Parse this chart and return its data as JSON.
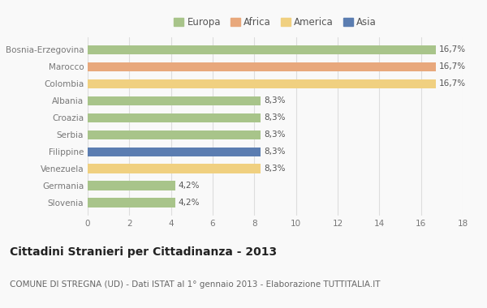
{
  "categories": [
    "Slovenia",
    "Germania",
    "Venezuela",
    "Filippine",
    "Serbia",
    "Croazia",
    "Albania",
    "Colombia",
    "Marocco",
    "Bosnia-Erzegovina"
  ],
  "values": [
    4.2,
    4.2,
    8.3,
    8.3,
    8.3,
    8.3,
    8.3,
    16.7,
    16.7,
    16.7
  ],
  "labels": [
    "4,2%",
    "4,2%",
    "8,3%",
    "8,3%",
    "8,3%",
    "8,3%",
    "8,3%",
    "16,7%",
    "16,7%",
    "16,7%"
  ],
  "colors": [
    "#a8c48a",
    "#a8c48a",
    "#f0d080",
    "#5b7db1",
    "#a8c48a",
    "#a8c48a",
    "#a8c48a",
    "#f0d080",
    "#e8a87c",
    "#a8c48a"
  ],
  "legend_labels": [
    "Europa",
    "Africa",
    "America",
    "Asia"
  ],
  "legend_colors": [
    "#a8c48a",
    "#e8a87c",
    "#f0d080",
    "#5b7db1"
  ],
  "title": "Cittadini Stranieri per Cittadinanza - 2013",
  "subtitle": "COMUNE DI STREGNA (UD) - Dati ISTAT al 1° gennaio 2013 - Elaborazione TUTTITALIA.IT",
  "xlim": [
    0,
    18
  ],
  "xticks": [
    0,
    2,
    4,
    6,
    8,
    10,
    12,
    14,
    16,
    18
  ],
  "bg_color": "#f9f9f9",
  "grid_color": "#dddddd",
  "bar_height": 0.55,
  "title_fontsize": 10,
  "subtitle_fontsize": 7.5,
  "label_fontsize": 7.5,
  "tick_fontsize": 7.5,
  "legend_fontsize": 8.5
}
